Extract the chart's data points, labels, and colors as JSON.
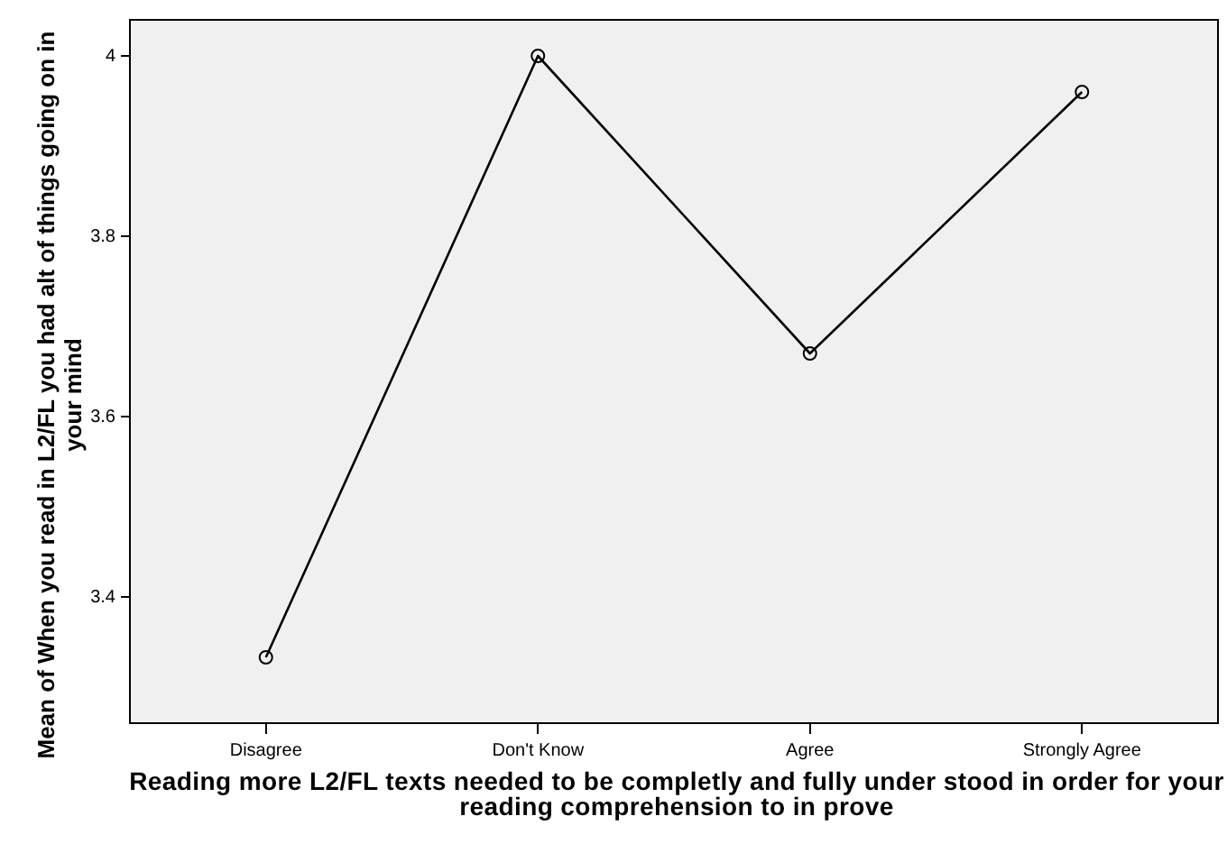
{
  "chart_data": {
    "type": "line",
    "xlabel": "Reading more L2/FL texts needed to be completly and fully under stood in order for your reading comprehension to in prove",
    "ylabel": "Mean of When you read in L2/FL you had alt of things going on in your mind",
    "categories": [
      "Disagree",
      "Don't Know",
      "Agree",
      "Strongly Agree"
    ],
    "series": [
      {
        "color": "#000000",
        "values": [
          3.333,
          4.0,
          3.67,
          3.96
        ]
      }
    ],
    "ylim": [
      3.26,
      4.04
    ],
    "yticks": [
      3.4,
      3.6,
      3.8,
      {
        "value": 4.0,
        "label": "4"
      }
    ],
    "grid": false,
    "legend": false,
    "marker": "circle",
    "line_style": "solid"
  }
}
